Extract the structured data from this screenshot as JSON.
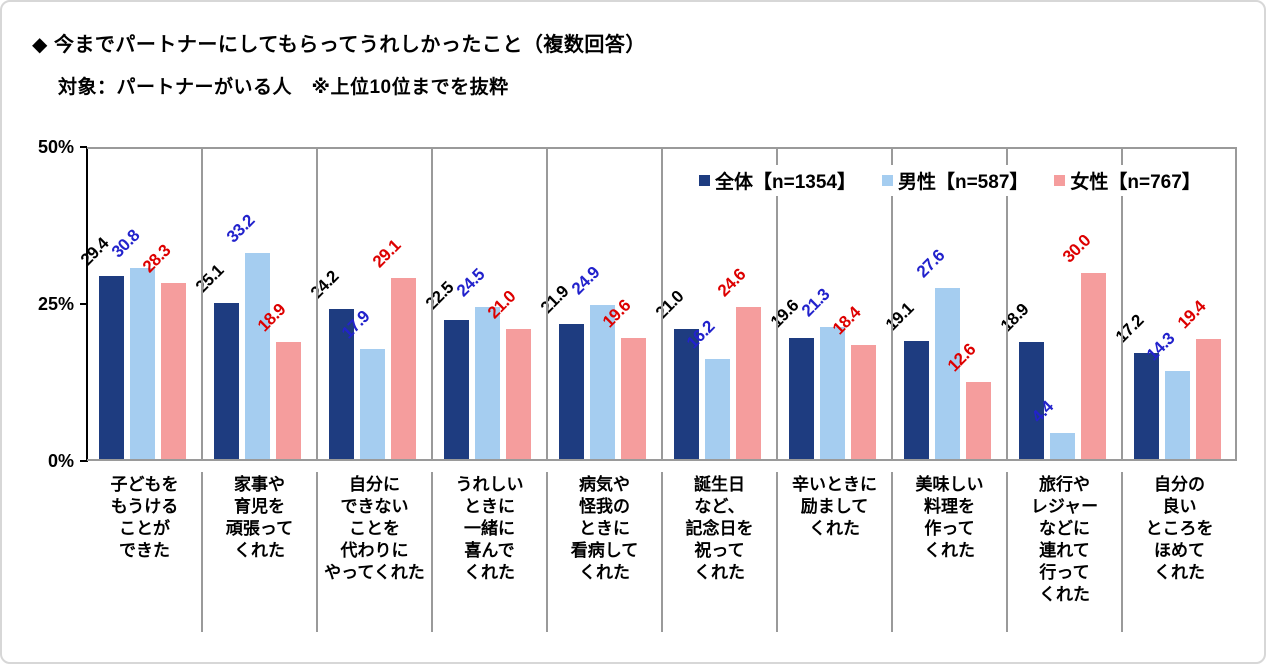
{
  "header": {
    "title": "◆ 今までパートナーにしてもらってうれしかったこと（複数回答）",
    "subtitle": "対象：パートナーがいる人　※上位10位までを抜粋"
  },
  "colors": {
    "zentai_bar": "#1e3c80",
    "dansei_bar": "#a5cdf0",
    "josei_bar": "#f59d9d",
    "zentai_label": "#000000",
    "dansei_label": "#2222cc",
    "josei_label": "#dd0000",
    "axis": "#000000",
    "grid_border": "#9a9a9a"
  },
  "chart_data": {
    "type": "bar",
    "title": "今までパートナーにしてもらってうれしかったこと（複数回答）",
    "subtitle": "対象：パートナーがいる人 ※上位10位までを抜粋",
    "ylabel": "%",
    "ylim": [
      0,
      50
    ],
    "yticks": [
      "50%",
      "25%",
      "0%"
    ],
    "grid": false,
    "legend_position": "top-right-inside",
    "categories": [
      [
        "子どもを",
        "もうける",
        "ことが",
        "できた"
      ],
      [
        "家事や",
        "育児を",
        "頑張って",
        "くれた"
      ],
      [
        "自分に",
        "できない",
        "ことを",
        "代わりに",
        "やってくれた"
      ],
      [
        "うれしい",
        "ときに",
        "一緒に",
        "喜んで",
        "くれた"
      ],
      [
        "病気や",
        "怪我の",
        "ときに",
        "看病して",
        "くれた"
      ],
      [
        "誕生日",
        "など、",
        "記念日を",
        "祝って",
        "くれた"
      ],
      [
        "辛いときに",
        "励まして",
        "くれた"
      ],
      [
        "美味しい",
        "料理を",
        "作って",
        "くれた"
      ],
      [
        "旅行や",
        "レジャー",
        "などに",
        "連れて",
        "行って",
        "くれた"
      ],
      [
        "自分の",
        "良い",
        "ところを",
        "ほめて",
        "くれた"
      ]
    ],
    "series": [
      {
        "name": "全体【n=1354】",
        "color": "#1e3c80",
        "label_color": "#000000",
        "values": [
          29.4,
          25.1,
          24.2,
          22.5,
          21.9,
          21.0,
          19.6,
          19.1,
          18.9,
          17.2
        ]
      },
      {
        "name": "男性【n=587】",
        "color": "#a5cdf0",
        "label_color": "#2222cc",
        "values": [
          30.8,
          33.2,
          17.9,
          24.5,
          24.9,
          16.2,
          21.3,
          27.6,
          4.4,
          14.3
        ]
      },
      {
        "name": "女性【n=767】",
        "color": "#f59d9d",
        "label_color": "#dd0000",
        "values": [
          28.3,
          18.9,
          29.1,
          21.0,
          19.6,
          24.6,
          18.4,
          12.6,
          30.0,
          19.4
        ]
      }
    ]
  }
}
